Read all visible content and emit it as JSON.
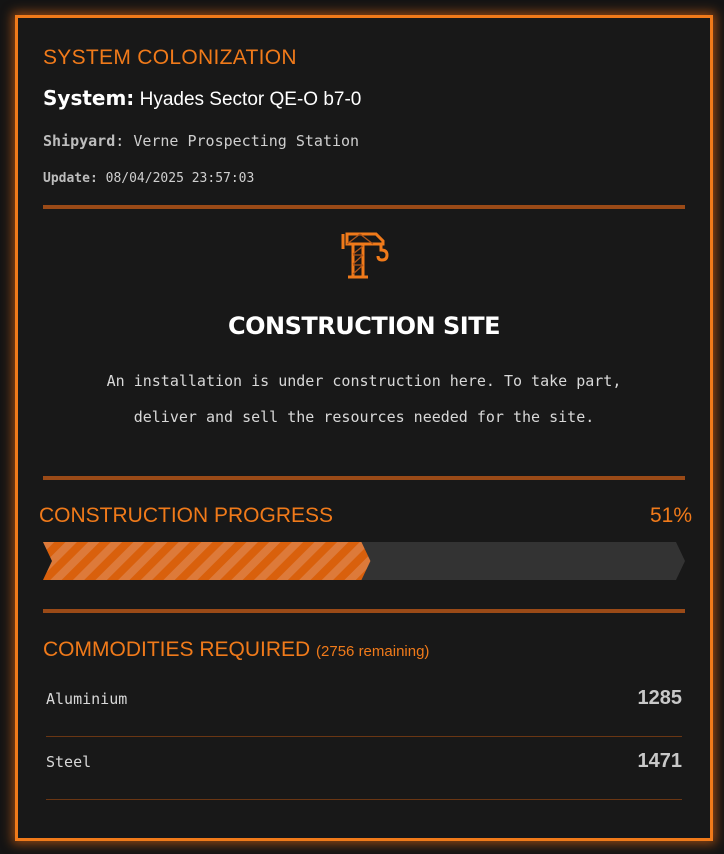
{
  "header": {
    "title": "SYSTEM COLONIZATION",
    "system_label": "System:",
    "system_value": "Hyades Sector QE-O b7-0",
    "shipyard_label": "Shipyard",
    "shipyard_value": "Verne Prospecting Station",
    "update_label": "Update:",
    "update_value": "08/04/2025 23:57:03"
  },
  "site": {
    "icon": "crane-icon",
    "title": "CONSTRUCTION SITE",
    "line1": "An installation is under construction here. To take part,",
    "line2": "deliver and sell the resources needed for the site."
  },
  "progress": {
    "label": "CONSTRUCTION PROGRESS",
    "percent_text": "51%",
    "percent": 51
  },
  "commodities": {
    "label": "COMMODITIES REQUIRED",
    "remaining": "(2756 remaining)",
    "items": [
      {
        "name": "Aluminium",
        "qty": "1285"
      },
      {
        "name": "Steel",
        "qty": "1471"
      }
    ]
  },
  "colors": {
    "accent": "#f07a1a",
    "rule": "#9a4a17",
    "bar_bg": "#333333"
  }
}
